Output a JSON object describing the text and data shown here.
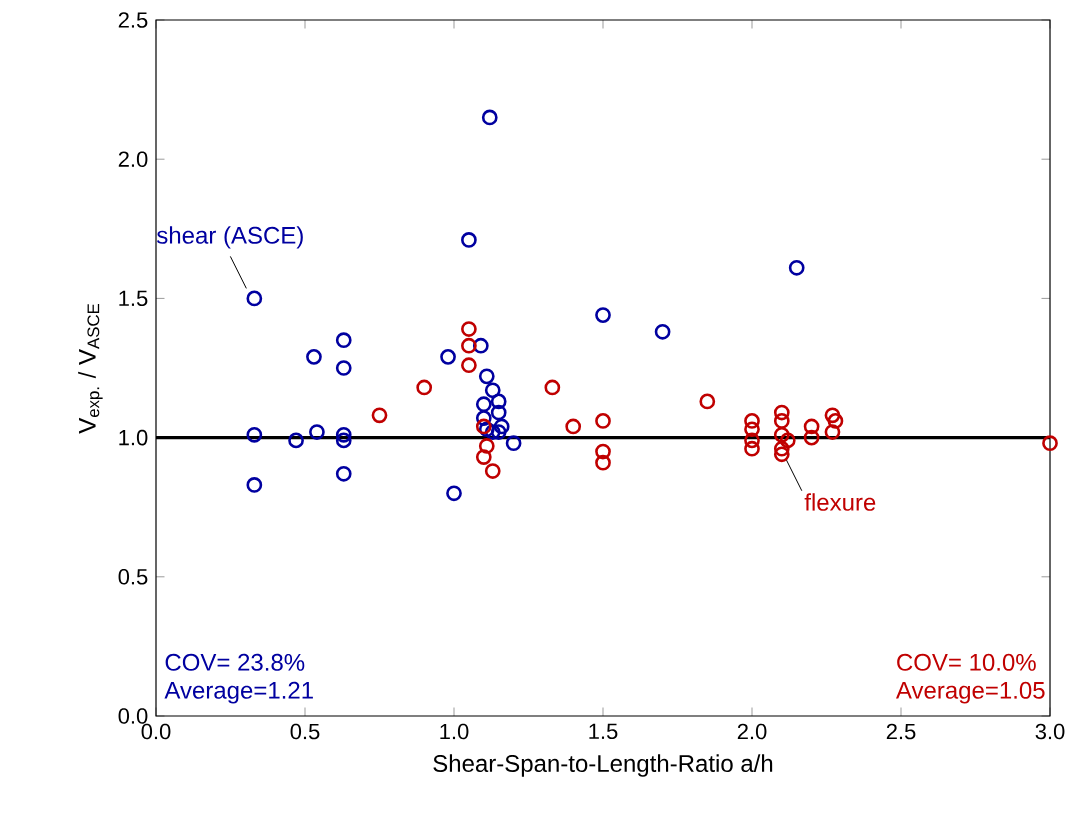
{
  "chart_data": {
    "type": "scatter",
    "xlabel": "Shear-Span-to-Length-Ratio a/h",
    "ylabel": "V$_{exp.}$ / V$_{ASCE}$",
    "xlim": [
      0,
      3
    ],
    "ylim": [
      0,
      2.5
    ],
    "xticks": [
      {
        "value": 0,
        "label": "0.0"
      },
      {
        "value": 0.5,
        "label": "0.5"
      },
      {
        "value": 1,
        "label": "1.0"
      },
      {
        "value": 1.5,
        "label": "1.5"
      },
      {
        "value": 2,
        "label": "2.0"
      },
      {
        "value": 2.5,
        "label": "2.5"
      },
      {
        "value": 3,
        "label": "3.0"
      }
    ],
    "yticks": [
      {
        "value": 0,
        "label": "0.0"
      },
      {
        "value": 0.5,
        "label": "0.5"
      },
      {
        "value": 1,
        "label": "1.0"
      },
      {
        "value": 1.5,
        "label": "1.5"
      },
      {
        "value": 2,
        "label": "2.0"
      },
      {
        "value": 2.5,
        "label": "2.5"
      }
    ],
    "marker": "circle",
    "grid": false,
    "series": [
      {
        "color": "#0000a0",
        "x": [
          0.33,
          0.33,
          0.33,
          0.47,
          0.53,
          0.54,
          0.63,
          0.63,
          0.63,
          0.63,
          0.63,
          0.98,
          1.0,
          1.05,
          1.09,
          1.12,
          1.11,
          1.13,
          1.1,
          1.15,
          1.15,
          1.1,
          1.16,
          1.11,
          1.13,
          1.15,
          1.2,
          1.5,
          1.7,
          2.15
        ],
        "values": [
          1.5,
          1.01,
          0.83,
          0.99,
          1.29,
          1.02,
          1.35,
          1.25,
          1.01,
          0.99,
          0.87,
          1.29,
          0.8,
          1.71,
          1.33,
          2.15,
          1.22,
          1.17,
          1.12,
          1.13,
          1.09,
          1.07,
          1.04,
          1.03,
          1.02,
          1.02,
          0.98,
          1.44,
          1.38,
          1.61
        ]
      },
      {
        "color": "#c00000",
        "x": [
          0.75,
          0.9,
          1.05,
          1.05,
          1.05,
          1.1,
          1.11,
          1.1,
          1.13,
          1.33,
          1.4,
          1.5,
          1.5,
          1.5,
          1.85,
          2.0,
          2.0,
          2.0,
          2.0,
          2.1,
          2.1,
          2.1,
          2.12,
          2.1,
          2.1,
          2.2,
          2.2,
          2.27,
          2.28,
          2.27,
          3.0
        ],
        "values": [
          1.08,
          1.18,
          1.39,
          1.33,
          1.26,
          1.04,
          0.97,
          0.93,
          0.88,
          1.18,
          1.04,
          1.06,
          0.95,
          0.91,
          1.13,
          1.06,
          1.03,
          0.99,
          0.96,
          1.09,
          1.06,
          1.01,
          0.99,
          0.96,
          0.94,
          1.04,
          1.0,
          1.08,
          1.06,
          1.02,
          0.98
        ]
      }
    ],
    "ref_lines": [
      {
        "axis": "y",
        "value": 1,
        "color": "#000000"
      }
    ],
    "annotations": [
      {
        "text": "shear (ASCE)",
        "x": 0.33,
        "y": 1.5
      },
      {
        "text": "flexure",
        "x": 2.1,
        "y": 0.96
      },
      "COV= 23.8%",
      "Average=1.21",
      "COV= 10.0%",
      "Average=1.05"
    ]
  }
}
